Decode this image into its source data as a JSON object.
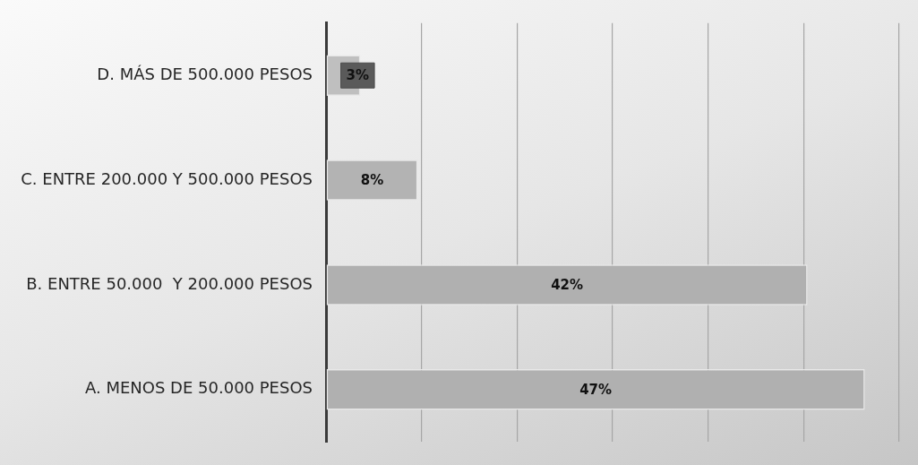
{
  "chart_data": {
    "type": "bar",
    "orientation": "horizontal",
    "categories": [
      "D. MÁS DE 500.000 PESOS",
      "C. ENTRE 200.000 Y 500.000 PESOS",
      "B. ENTRE 50.000  Y 200.000 PESOS",
      "A. MENOS DE 50.000 PESOS"
    ],
    "values": [
      3,
      8,
      42,
      47
    ],
    "colors": [
      "#bfbfbf",
      "#b3b3b3",
      "#b0b0b0",
      "#b0b0b0"
    ],
    "value_labels": [
      "3%",
      "8%",
      "42%",
      "47%"
    ],
    "xlim": [
      0,
      50
    ],
    "grid": "x",
    "tick_labels": "y"
  }
}
